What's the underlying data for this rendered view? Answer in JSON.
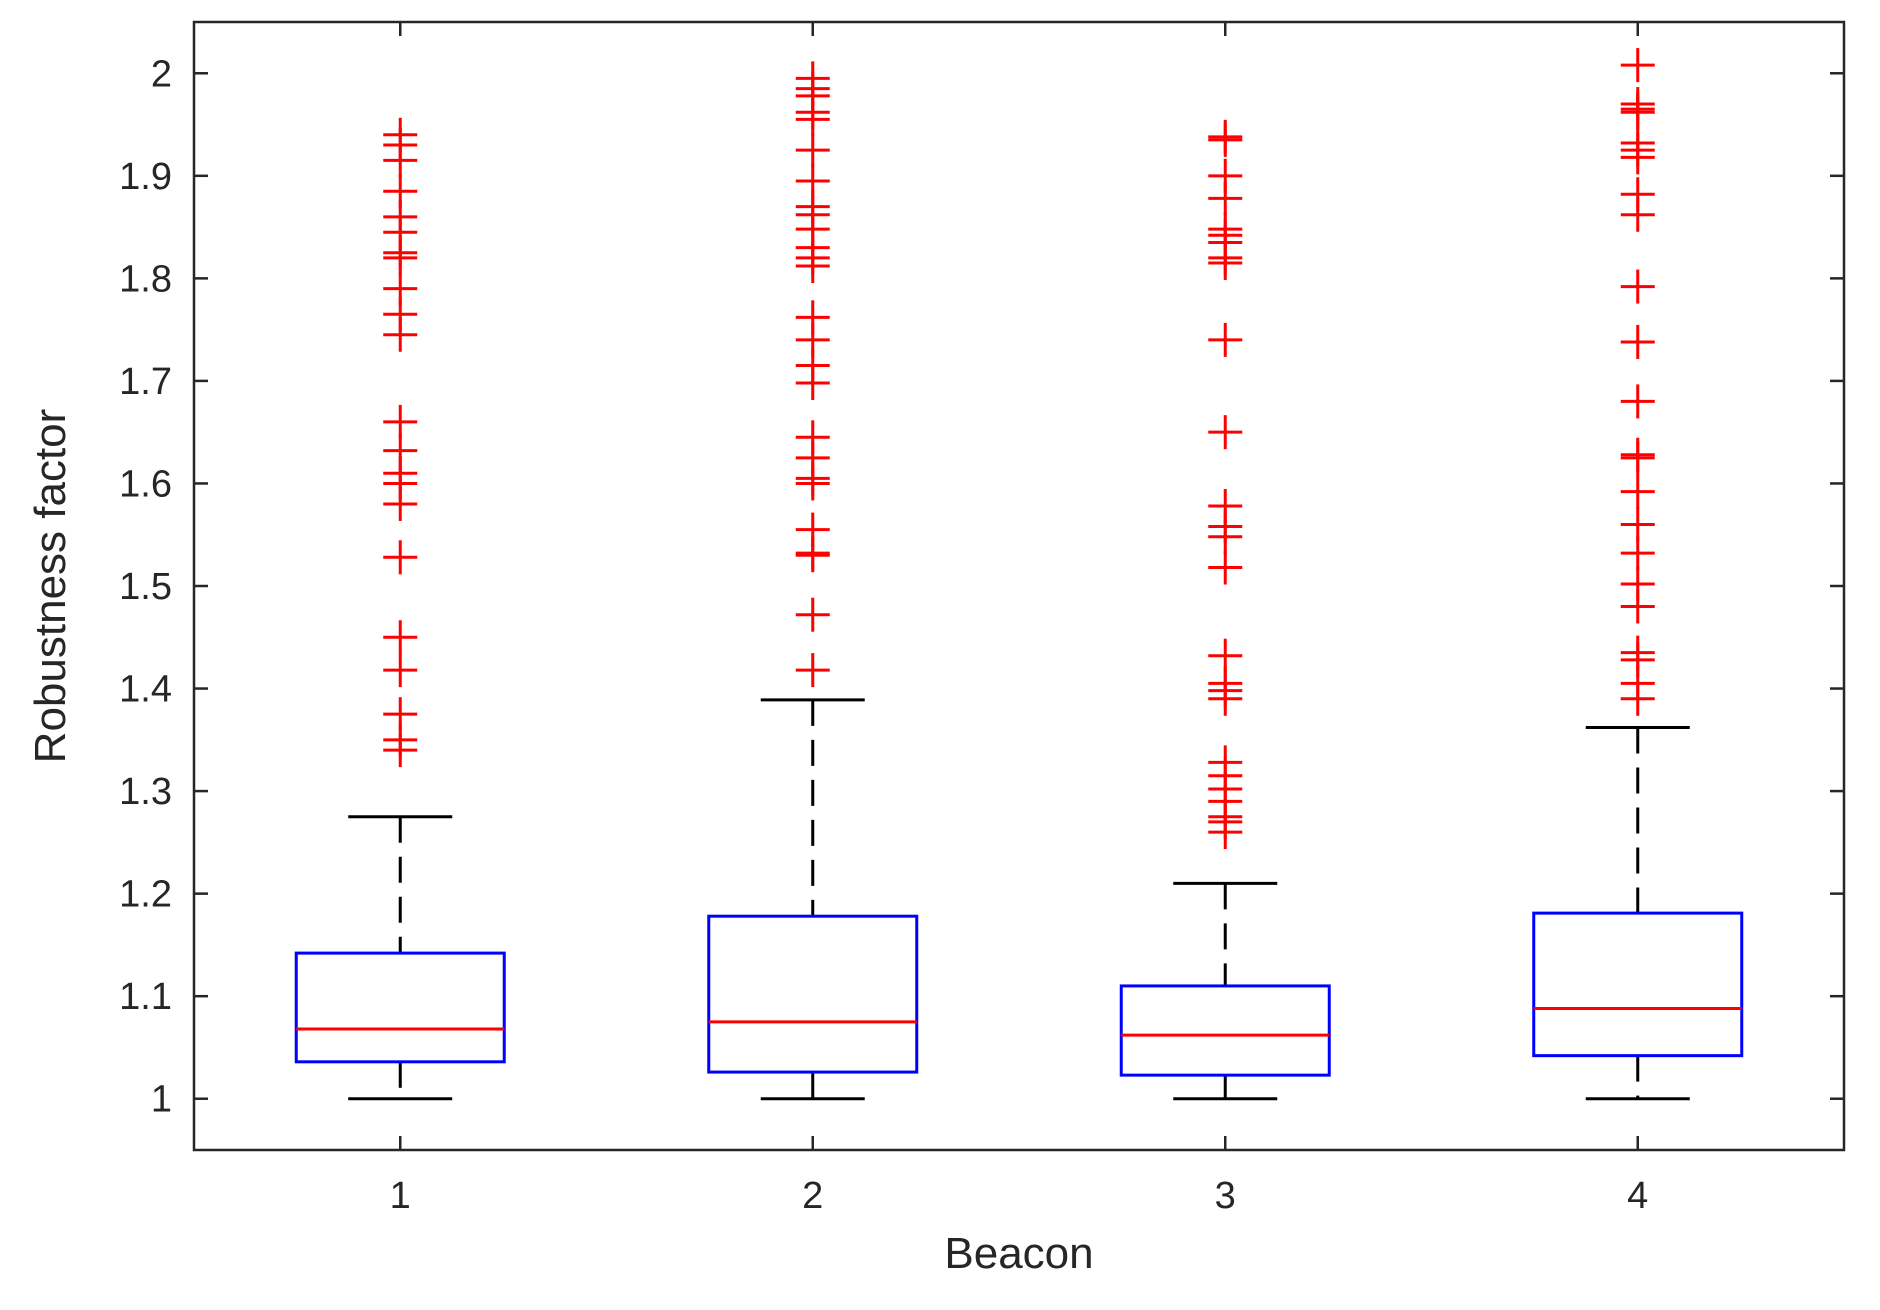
{
  "chart_data": {
    "type": "boxplot",
    "title": "",
    "xlabel": "Beacon",
    "ylabel": "Robustness factor",
    "ylim": [
      0.95,
      2.05
    ],
    "yticks": [
      1,
      1.1,
      1.2,
      1.3,
      1.4,
      1.5,
      1.6,
      1.7,
      1.8,
      1.9,
      2
    ],
    "ytick_labels": [
      "1",
      "1.1",
      "1.2",
      "1.3",
      "1.4",
      "1.5",
      "1.6",
      "1.7",
      "1.8",
      "1.9",
      "2"
    ],
    "categories": [
      "1",
      "2",
      "3",
      "4"
    ],
    "colors": {
      "box": "#0000ff",
      "median": "#ff0000",
      "whisker": "#000000",
      "outlier": "#ff0000",
      "axis": "#262626"
    },
    "boxes": [
      {
        "category": "1",
        "whisker_low": 1.0,
        "q1": 1.036,
        "median": 1.068,
        "q3": 1.142,
        "whisker_high": 1.275,
        "outliers": [
          1.34,
          1.35,
          1.375,
          1.418,
          1.45,
          1.528,
          1.58,
          1.6,
          1.61,
          1.632,
          1.66,
          1.745,
          1.765,
          1.79,
          1.82,
          1.825,
          1.845,
          1.86,
          1.885,
          1.915,
          1.93,
          1.94
        ]
      },
      {
        "category": "2",
        "whisker_low": 1.0,
        "q1": 1.026,
        "median": 1.075,
        "q3": 1.178,
        "whisker_high": 1.389,
        "outliers": [
          1.418,
          1.472,
          1.53,
          1.532,
          1.555,
          1.6,
          1.605,
          1.625,
          1.645,
          1.698,
          1.715,
          1.74,
          1.762,
          1.812,
          1.82,
          1.83,
          1.848,
          1.862,
          1.87,
          1.895,
          1.925,
          1.955,
          1.962,
          1.978,
          1.985,
          1.995
        ]
      },
      {
        "category": "3",
        "whisker_low": 1.0,
        "q1": 1.023,
        "median": 1.062,
        "q3": 1.11,
        "whisker_high": 1.21,
        "outliers": [
          1.26,
          1.27,
          1.275,
          1.29,
          1.302,
          1.315,
          1.328,
          1.39,
          1.398,
          1.405,
          1.432,
          1.518,
          1.548,
          1.558,
          1.578,
          1.65,
          1.74,
          1.815,
          1.82,
          1.835,
          1.842,
          1.848,
          1.878,
          1.9,
          1.935,
          1.938
        ]
      },
      {
        "category": "4",
        "whisker_low": 1.0,
        "q1": 1.042,
        "median": 1.088,
        "q3": 1.181,
        "whisker_high": 1.362,
        "outliers": [
          1.39,
          1.405,
          1.428,
          1.435,
          1.48,
          1.502,
          1.532,
          1.56,
          1.592,
          1.625,
          1.628,
          1.68,
          1.738,
          1.792,
          1.862,
          1.882,
          1.918,
          1.925,
          1.932,
          1.962,
          1.965,
          1.97,
          2.008
        ]
      }
    ]
  }
}
